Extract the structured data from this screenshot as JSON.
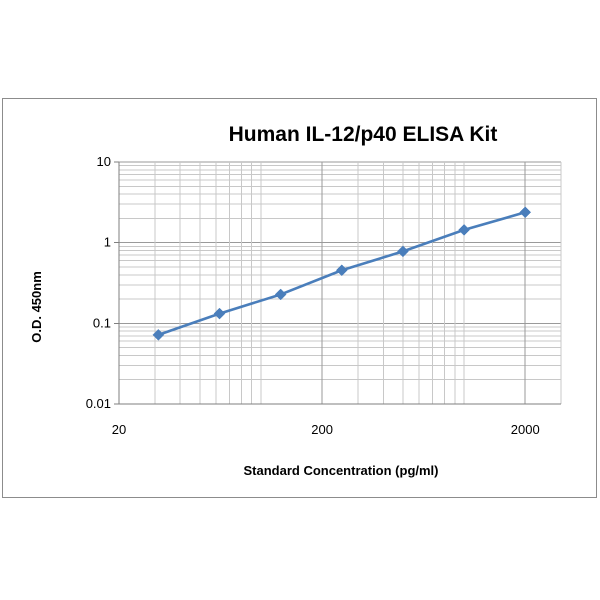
{
  "chart_data": {
    "type": "line",
    "title": "Human IL-12/p40 ELISA Kit",
    "xlabel": "Standard Concentration (pg/ml)",
    "ylabel": "O.D. 450nm",
    "x_scale": "log",
    "y_scale": "log",
    "xlim": [
      20,
      3000
    ],
    "ylim": [
      0.01,
      10
    ],
    "x_ticks": [
      "20",
      "200",
      "2000"
    ],
    "y_ticks": [
      "10",
      "1",
      "0.1",
      "0.01"
    ],
    "grid": true,
    "legend": false,
    "series": [
      {
        "x": [
          31.25,
          62.5,
          125,
          250,
          500,
          1000,
          2000
        ],
        "y": [
          0.072,
          0.132,
          0.228,
          0.455,
          0.78,
          1.44,
          2.38
        ],
        "color": "#4a7ebb",
        "marker": "diamond"
      }
    ]
  }
}
